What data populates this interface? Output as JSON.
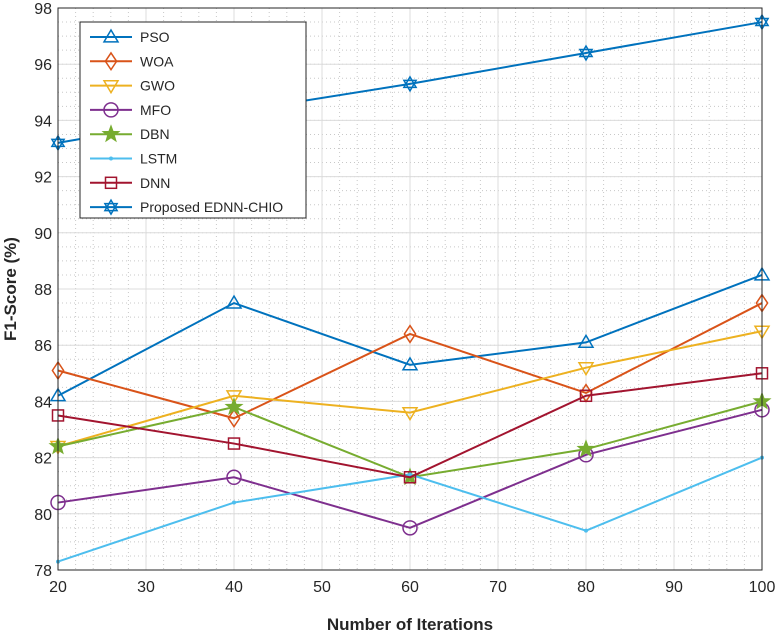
{
  "chart_data": {
    "type": "line",
    "title": "",
    "xlabel": "Number of Iterations",
    "ylabel": "F1-Score (%)",
    "xlim": [
      20,
      100
    ],
    "ylim": [
      78,
      98
    ],
    "xticks": [
      20,
      30,
      40,
      50,
      60,
      70,
      80,
      90,
      100
    ],
    "yticks": [
      78,
      80,
      82,
      84,
      86,
      88,
      90,
      92,
      94,
      96,
      98
    ],
    "grid": true,
    "legend_position": "top-left",
    "x": [
      20,
      40,
      60,
      80,
      100
    ],
    "series": [
      {
        "name": "PSO",
        "color": "#0072BD",
        "marker": "triangle-up",
        "values": [
          84.2,
          87.5,
          85.3,
          86.1,
          88.5
        ]
      },
      {
        "name": "WOA",
        "color": "#D95319",
        "marker": "diamond",
        "values": [
          85.1,
          83.4,
          86.4,
          84.3,
          87.5
        ]
      },
      {
        "name": "GWO",
        "color": "#EDB120",
        "marker": "triangle-down",
        "values": [
          82.4,
          84.2,
          83.6,
          85.2,
          86.5
        ]
      },
      {
        "name": "MFO",
        "color": "#7E2F8E",
        "marker": "circle",
        "values": [
          80.4,
          81.3,
          79.5,
          82.1,
          83.7
        ]
      },
      {
        "name": "DBN",
        "color": "#77AC30",
        "marker": "star",
        "values": [
          82.4,
          83.8,
          81.3,
          82.3,
          84.0
        ]
      },
      {
        "name": "LSTM",
        "color": "#4DBEEE",
        "marker": "point",
        "values": [
          78.3,
          80.4,
          81.4,
          79.4,
          82.0
        ]
      },
      {
        "name": "DNN",
        "color": "#A2142F",
        "marker": "square",
        "values": [
          83.5,
          82.5,
          81.3,
          84.2,
          85.0
        ]
      },
      {
        "name": "Proposed EDNN-CHIO",
        "color": "#0072BD",
        "marker": "hexagram",
        "values": [
          93.2,
          94.3,
          95.3,
          96.4,
          97.5
        ]
      }
    ]
  }
}
